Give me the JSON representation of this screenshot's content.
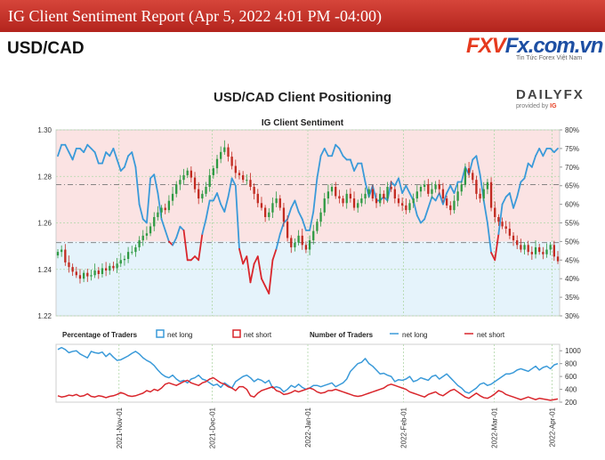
{
  "header": {
    "title": "IG Client Sentiment Report (Apr 5, 2022 4:01 PM -04:00)",
    "pair": "USD/CAD"
  },
  "logo": {
    "part1": "FXV",
    "part2": "Fx.com.vn",
    "tagline": "Tin Tức Forex Việt Nam"
  },
  "dailyfx": {
    "name": "DAILYFX",
    "provided": "provided by",
    "ig": "IG"
  },
  "chart_data": {
    "type": "line",
    "title": "USD/CAD Client Positioning",
    "subtitle": "IG Client Sentiment",
    "price_axis": {
      "ylim": [
        1.22,
        1.3
      ],
      "ticks": [
        "1.22",
        "1.24",
        "1.26",
        "1.28",
        "1.30"
      ]
    },
    "percent_axis": {
      "ylim": [
        30,
        80
      ],
      "ticks": [
        "30%",
        "35%",
        "40%",
        "45%",
        "50%",
        "55%",
        "60%",
        "65%",
        "70%",
        "75%",
        "80%"
      ]
    },
    "count_axis": {
      "ylim": [
        200,
        1100
      ],
      "ticks": [
        "200",
        "400",
        "600",
        "800",
        "1000"
      ]
    },
    "x_ticks": [
      "2021-Nov-01",
      "2021-Dec-01",
      "2022-Jan-01",
      "2022-Feb-01",
      "2022-Mar-01",
      "2022-Apr-01"
    ],
    "x_tick_pos": [
      0.125,
      0.31,
      0.5,
      0.69,
      0.87,
      0.985
    ],
    "reference_lines": {
      "price_dashed": [
        1.2515,
        1.2765
      ],
      "percent_50": 50
    },
    "net_long_pct": [
      73,
      76,
      76,
      74,
      72,
      75,
      75,
      74,
      76,
      75,
      74,
      71,
      71,
      74,
      73,
      75,
      72,
      69,
      70,
      73,
      74,
      70,
      60,
      56,
      55,
      67,
      68,
      63,
      56,
      53,
      50,
      49,
      51,
      54,
      53,
      45,
      45,
      46,
      45,
      52,
      56,
      61,
      61,
      63,
      60,
      58,
      62,
      67,
      65,
      48,
      44,
      46,
      39,
      44,
      46,
      40,
      38,
      36,
      45,
      48,
      52,
      55,
      56,
      59,
      61,
      58,
      56,
      53,
      53,
      58,
      67,
      73,
      75,
      73,
      73,
      76,
      75,
      73,
      72,
      72,
      69,
      71,
      71,
      66,
      62,
      65,
      61,
      61,
      62,
      61,
      66,
      65,
      67,
      63,
      65,
      63,
      61,
      57,
      55,
      56,
      59,
      62,
      61,
      63,
      60,
      63,
      65,
      63,
      66,
      66,
      70,
      68,
      72,
      73,
      68,
      61,
      55,
      47,
      45,
      52,
      60,
      62,
      63,
      59,
      62,
      66,
      67,
      71,
      70,
      73,
      75,
      73,
      75,
      75,
      74,
      75
    ],
    "price_close": [
      1.2475,
      1.2485,
      1.243,
      1.241,
      1.239,
      1.2375,
      1.236,
      1.2385,
      1.237,
      1.2375,
      1.2395,
      1.238,
      1.2405,
      1.2395,
      1.2415,
      1.2405,
      1.2425,
      1.244,
      1.2445,
      1.2475,
      1.2475,
      1.2495,
      1.2525,
      1.2545,
      1.2555,
      1.2585,
      1.2625,
      1.2645,
      1.2665,
      1.2655,
      1.2695,
      1.2725,
      1.2765,
      1.2785,
      1.2805,
      1.2825,
      1.2795,
      1.2745,
      1.2705,
      1.2725,
      1.2755,
      1.2805,
      1.2835,
      1.2875,
      1.2905,
      1.2925,
      1.2885,
      1.2845,
      1.2815,
      1.2805,
      1.2785,
      1.2785,
      1.2755,
      1.2725,
      1.2685,
      1.2665,
      1.2625,
      1.2645,
      1.2685,
      1.2705,
      1.2665,
      1.2605,
      1.2535,
      1.2495,
      1.2515,
      1.2545,
      1.2505,
      1.2485,
      1.2525,
      1.2565,
      1.2605,
      1.2645,
      1.2705,
      1.2735,
      1.2755,
      1.2715,
      1.2705,
      1.2685,
      1.2725,
      1.2705,
      1.2665,
      1.2685,
      1.2705,
      1.2725,
      1.2745,
      1.2705,
      1.2685,
      1.2725,
      1.2705,
      1.2755,
      1.2745,
      1.2705,
      1.2685,
      1.2675,
      1.2655,
      1.2685,
      1.2705,
      1.2735,
      1.2755,
      1.2765,
      1.2725,
      1.2745,
      1.2765,
      1.2745,
      1.2705,
      1.2675,
      1.2655,
      1.2695,
      1.2735,
      1.2765,
      1.2835,
      1.2815,
      1.2785,
      1.2725,
      1.2705,
      1.2745,
      1.2775,
      1.2665,
      1.2625,
      1.2605,
      1.2585,
      1.2575,
      1.2545,
      1.2525,
      1.2505,
      1.2485,
      1.2505,
      1.2475,
      1.2465,
      1.2495,
      1.2475,
      1.2465,
      1.2485,
      1.2505,
      1.2455,
      1.2435
    ],
    "net_long_count": [
      1020,
      1050,
      1020,
      970,
      990,
      1000,
      950,
      920,
      890,
      990,
      970,
      960,
      980,
      910,
      960,
      900,
      850,
      860,
      890,
      920,
      960,
      990,
      950,
      890,
      850,
      820,
      770,
      700,
      640,
      600,
      580,
      620,
      560,
      520,
      540,
      500,
      560,
      580,
      620,
      560,
      540,
      500,
      460,
      480,
      430,
      500,
      460,
      420,
      520,
      560,
      600,
      620,
      580,
      520,
      560,
      540,
      500,
      540,
      420,
      440,
      420,
      360,
      400,
      460,
      430,
      480,
      430,
      400,
      420,
      460,
      460,
      440,
      460,
      480,
      500,
      440,
      470,
      500,
      560,
      680,
      740,
      800,
      820,
      880,
      800,
      760,
      700,
      640,
      650,
      620,
      600,
      520,
      550,
      540,
      560,
      600,
      520,
      540,
      580,
      560,
      540,
      600,
      620,
      560,
      600,
      640,
      580,
      520,
      460,
      420,
      360,
      340,
      380,
      420,
      480,
      500,
      460,
      480,
      520,
      560,
      600,
      640,
      640,
      660,
      700,
      720,
      700,
      680,
      720,
      760,
      700,
      740,
      760,
      720,
      780,
      800
    ],
    "net_short_count": [
      300,
      280,
      290,
      310,
      300,
      320,
      290,
      300,
      330,
      290,
      280,
      300,
      290,
      270,
      290,
      300,
      320,
      350,
      330,
      300,
      290,
      300,
      320,
      340,
      380,
      360,
      400,
      380,
      420,
      480,
      500,
      480,
      460,
      490,
      520,
      540,
      500,
      480,
      460,
      500,
      520,
      560,
      580,
      540,
      500,
      480,
      440,
      420,
      380,
      440,
      440,
      400,
      300,
      280,
      340,
      380,
      400,
      420,
      440,
      380,
      360,
      320,
      330,
      350,
      380,
      360,
      380,
      400,
      420,
      400,
      360,
      340,
      350,
      380,
      380,
      400,
      380,
      360,
      340,
      320,
      300,
      290,
      300,
      320,
      340,
      360,
      380,
      400,
      420,
      460,
      480,
      460,
      440,
      420,
      400,
      360,
      340,
      320,
      300,
      280,
      320,
      340,
      360,
      320,
      300,
      340,
      380,
      400,
      360,
      320,
      280,
      260,
      300,
      340,
      300,
      270,
      260,
      290,
      330,
      380,
      360,
      320,
      300,
      280,
      260,
      240,
      260,
      280,
      260,
      240,
      260,
      250,
      240,
      230,
      240,
      250
    ]
  },
  "legend": {
    "pct_label": "Percentage of Traders",
    "num_label": "Number of Traders",
    "net_long": "net long",
    "net_short": "net short"
  },
  "colors": {
    "long": "#3a9ad9",
    "short": "#d9262c",
    "up_candle": "#2f9a43",
    "down_candle": "#c22a20",
    "long_fill": "#e5f3fb",
    "short_fill": "#fbe3e3"
  }
}
